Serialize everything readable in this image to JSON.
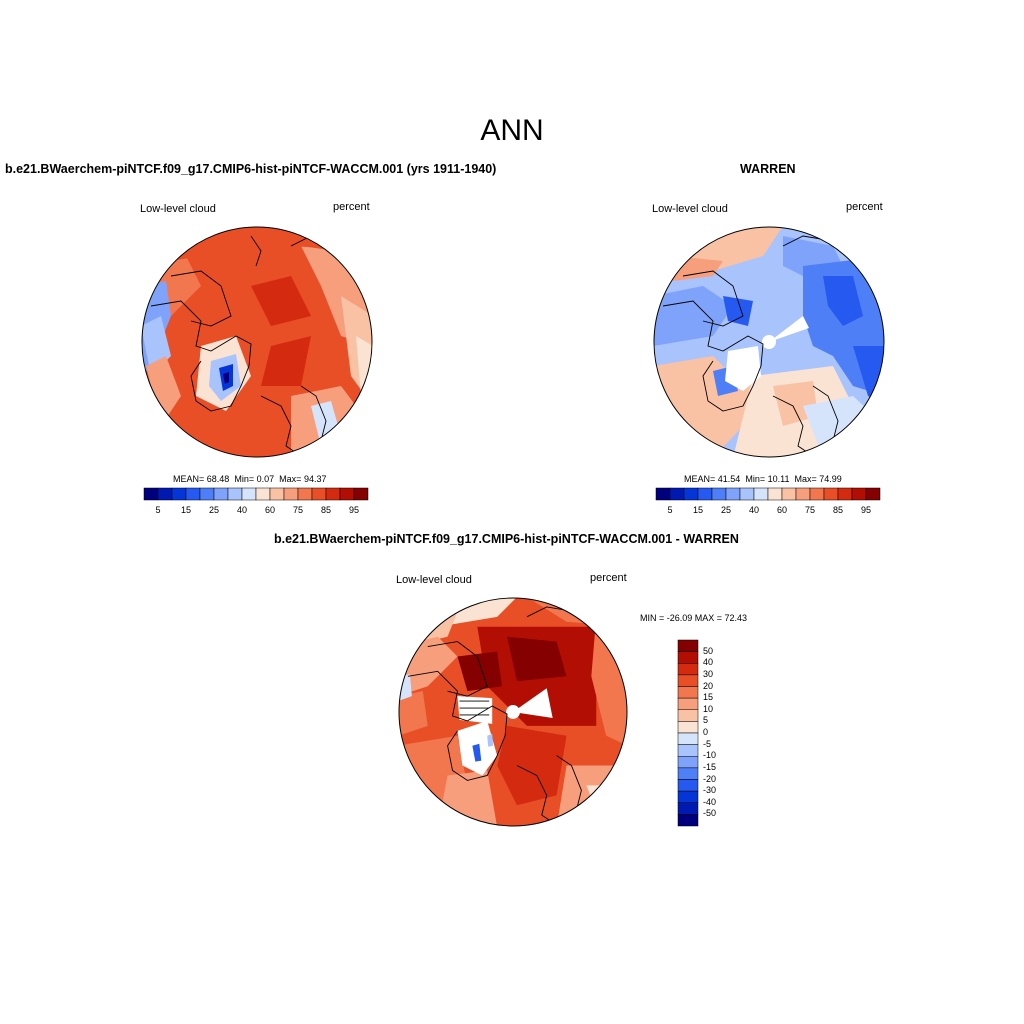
{
  "season": "ANN",
  "palette": [
    "#00007f",
    "#0019b0",
    "#0535d6",
    "#2559f0",
    "#4f7ff7",
    "#7fa3fb",
    "#a9c3fd",
    "#d6e4fb",
    "#fbe3d3",
    "#f9c2a5",
    "#f79e7c",
    "#f2774f",
    "#e94f27",
    "#d42a10",
    "#b30e03",
    "#850000"
  ],
  "panel_a": {
    "title": "b.e21.BWaerchem-piNTCF.f09_g17.CMIP6-hist-piNTCF-WACCM.001 (yrs 1911-1940)",
    "variable": "Low-level cloud",
    "units": "percent",
    "stats": {
      "mean_label": "MEAN=",
      "mean": "68.48",
      "min_label": "Min=",
      "min": "0.07",
      "max_label": "Max=",
      "max": "94.37"
    },
    "colorbar_labels": [
      "5",
      "15",
      "25",
      "40",
      "60",
      "75",
      "85",
      "95"
    ]
  },
  "panel_b": {
    "title": "WARREN",
    "variable": "Low-level cloud",
    "units": "percent",
    "stats": {
      "mean_label": "MEAN=",
      "mean": "41.54",
      "min_label": "Min=",
      "min": "10.11",
      "max_label": "Max=",
      "max": "74.99"
    },
    "colorbar_labels": [
      "5",
      "15",
      "25",
      "40",
      "60",
      "75",
      "85",
      "95"
    ]
  },
  "panel_diff": {
    "title": "b.e21.BWaerchem-piNTCF.f09_g17.CMIP6-hist-piNTCF-WACCM.001 - WARREN",
    "variable": "Low-level cloud",
    "units": "percent",
    "minmax_label": "MIN = -26.09 MAX =  72.43",
    "colorbar_labels": [
      "50",
      "40",
      "30",
      "20",
      "15",
      "10",
      "5",
      "0",
      "-5",
      "-10",
      "-15",
      "-20",
      "-30",
      "-40",
      "-50"
    ]
  }
}
